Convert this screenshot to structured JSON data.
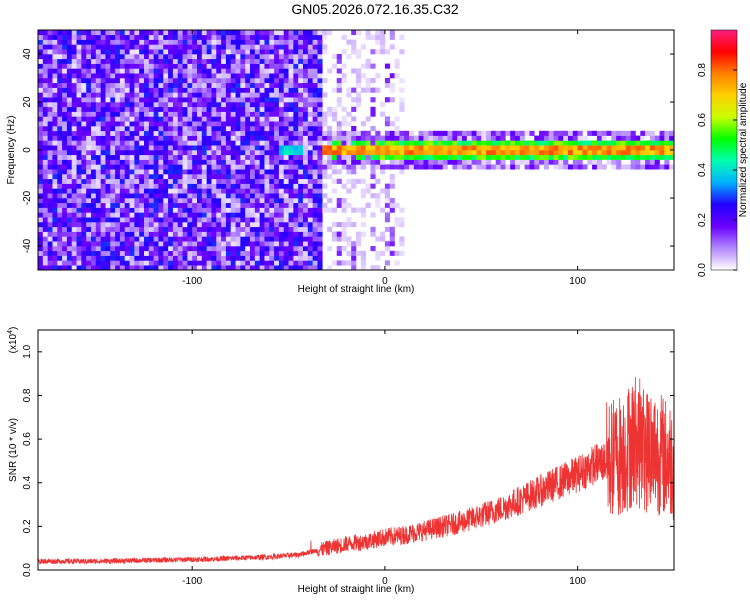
{
  "title": "GN05.2026.072.16.35.C32",
  "chart_data": [
    {
      "type": "heatmap",
      "name": "spectrogram",
      "xlabel": "Height of straight line (km)",
      "ylabel": "Frequency (Hz)",
      "xlim": [
        -180,
        150
      ],
      "ylim": [
        -50,
        50
      ],
      "xticks": [
        -100,
        0,
        100
      ],
      "yticks": [
        -40,
        -20,
        0,
        20,
        40
      ],
      "colorbar": {
        "label": "Normalized spectral amplitude",
        "range": [
          0,
          1
        ],
        "ticks": [
          "0.0",
          "0.2",
          "0.4",
          "0.6",
          "0.8"
        ],
        "colormap": [
          "#ffffff",
          "#b388ff",
          "#6a00ff",
          "#2200ff",
          "#00b0ff",
          "#00ffb0",
          "#00ff00",
          "#c8ff00",
          "#ffd000",
          "#ff8000",
          "#ff0000",
          "#ff2080"
        ]
      },
      "regions": [
        {
          "x": [
            -180,
            -33
          ],
          "description_value": "noise",
          "amplitude": 0.15
        },
        {
          "x": [
            -55,
            -45
          ],
          "freq": 0,
          "amplitude": 0.45
        },
        {
          "x": [
            -33,
            150
          ],
          "freq": 0,
          "amplitude": 0.9
        }
      ]
    },
    {
      "type": "line",
      "name": "snr",
      "xlabel": "Height of straight line (km)",
      "ylabel": "SNR (10 * v/v)",
      "ylabel_scale": "(x10",
      "ylabel_scale_exp": "4",
      "ylabel_scale_close": ")",
      "xlim": [
        -180,
        150
      ],
      "ylim": [
        0,
        1.1
      ],
      "xticks": [
        -100,
        0,
        100
      ],
      "yticks": [
        "0.0",
        "0.2",
        "0.4",
        "0.6",
        "0.8",
        "1.0"
      ],
      "color": "#ee3333",
      "series": [
        {
          "x": [
            -180,
            -150,
            -120,
            -90,
            -60,
            -45,
            -35,
            -30,
            -20,
            -10,
            0,
            10,
            20,
            30,
            40,
            50,
            60,
            70,
            80,
            90,
            100,
            110,
            115,
            120,
            125,
            130,
            135,
            140,
            145,
            150
          ],
          "y": [
            0.04,
            0.04,
            0.045,
            0.05,
            0.06,
            0.07,
            0.09,
            0.1,
            0.12,
            0.13,
            0.15,
            0.16,
            0.18,
            0.2,
            0.22,
            0.25,
            0.28,
            0.32,
            0.36,
            0.4,
            0.44,
            0.49,
            0.5,
            0.52,
            0.55,
            0.6,
            0.55,
            0.55,
            0.52,
            0.5
          ]
        }
      ]
    }
  ]
}
